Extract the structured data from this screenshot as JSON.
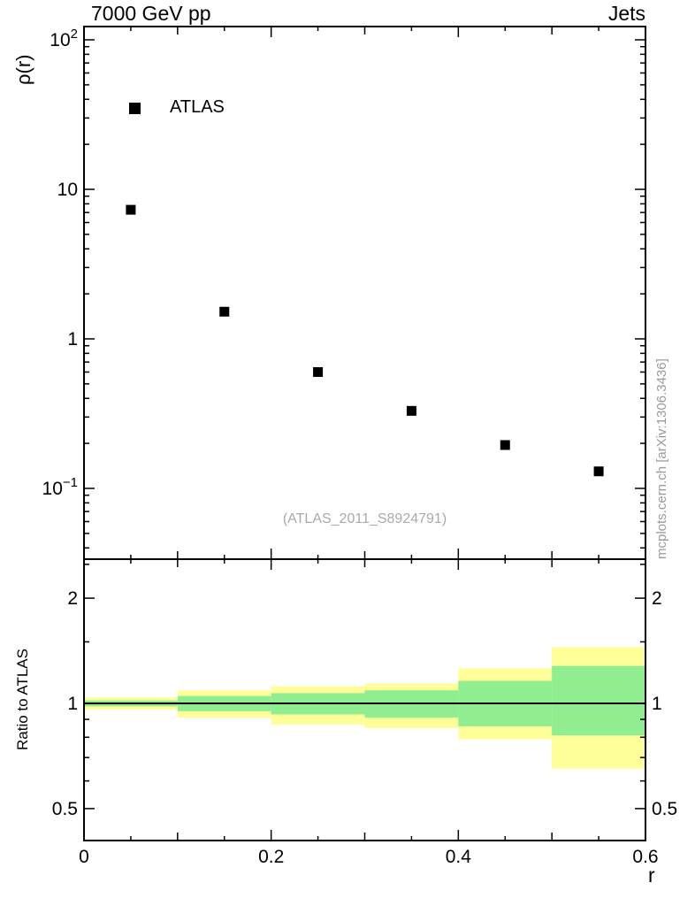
{
  "titles": {
    "left": "7000 GeV pp",
    "right": "Jets"
  },
  "axes": {
    "top_ylabel": "ρ(r)",
    "ratio_ylabel": "Ratio to ATLAS",
    "xlabel": "r"
  },
  "watermark": "(ATLAS_2011_S8924791)",
  "side_note": "mcplots.cern.ch [arXiv:1306.3436]",
  "legend": {
    "label": "ATLAS",
    "marker": "filled-square",
    "marker_color": "#000000"
  },
  "chart_data": {
    "type": "scatter",
    "title": "7000 GeV pp — Jets",
    "xlabel": "r",
    "x_range": [
      0,
      0.6
    ],
    "xticks": [
      {
        "value": 0,
        "label": "0"
      },
      {
        "value": 0.2,
        "label": "0.2"
      },
      {
        "value": 0.4,
        "label": "0.4"
      },
      {
        "value": 0.6,
        "label": "0.6"
      }
    ],
    "top_panel": {
      "ylabel": "ρ(r)",
      "yscale": "log",
      "y_range": [
        0.0336,
        122.7
      ],
      "yticks": [
        {
          "value": 100,
          "label": "10",
          "sup": "2"
        },
        {
          "value": 10,
          "label": "10"
        },
        {
          "value": 1,
          "label": "1"
        },
        {
          "value": 0.1,
          "label": "10",
          "sup": "−1"
        }
      ],
      "series": [
        {
          "name": "ATLAS",
          "marker": "filled-square",
          "color": "#000000",
          "x": [
            0.05,
            0.15,
            0.25,
            0.35,
            0.45,
            0.55
          ],
          "y": [
            7.3,
            1.52,
            0.6,
            0.33,
            0.195,
            0.13
          ]
        }
      ]
    },
    "ratio_panel": {
      "ylabel": "Ratio to ATLAS",
      "yscale": "log",
      "y_range": [
        0.405,
        2.59
      ],
      "reference_line": 1,
      "yticks": [
        {
          "value": 2,
          "label": "2"
        },
        {
          "value": 1,
          "label": "1"
        },
        {
          "value": 0.5,
          "label": "0.5"
        }
      ],
      "tick_values": [
        0.5,
        0.6,
        0.7,
        0.8,
        0.9,
        1,
        1.5,
        2,
        2.5
      ],
      "major_tick_values": [
        0.5,
        1,
        2
      ],
      "bands": {
        "bin_edges": [
          0,
          0.1,
          0.2,
          0.3,
          0.4,
          0.5,
          0.6
        ],
        "outer": {
          "name": "total-uncertainty",
          "color": "#ffff99",
          "lo": [
            0.96,
            0.91,
            0.87,
            0.85,
            0.79,
            0.65
          ],
          "hi": [
            1.04,
            1.09,
            1.12,
            1.14,
            1.26,
            1.45
          ]
        },
        "inner": {
          "name": "stat-uncertainty",
          "color": "#90ee90",
          "lo": [
            0.98,
            0.95,
            0.93,
            0.91,
            0.86,
            0.81
          ],
          "hi": [
            1.02,
            1.05,
            1.07,
            1.09,
            1.16,
            1.28
          ]
        }
      }
    }
  }
}
